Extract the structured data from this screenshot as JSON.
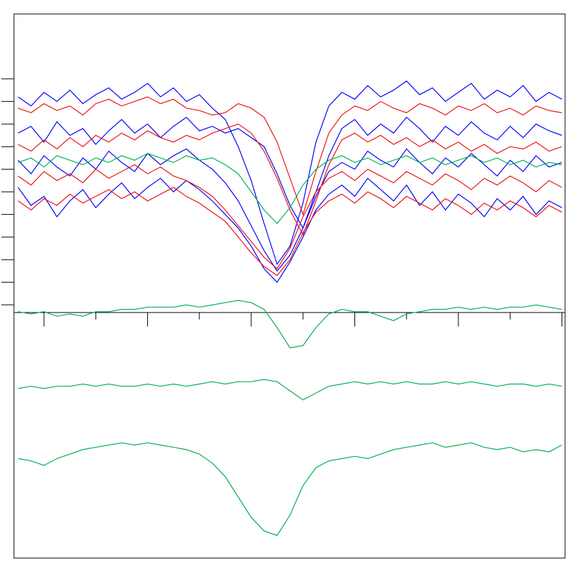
{
  "chart_data": {
    "type": "line",
    "x": [
      0.5,
      0.75,
      1.0,
      1.25,
      1.5,
      1.75,
      2.0,
      2.25,
      2.5,
      2.75,
      3.0,
      3.25,
      3.5,
      3.75,
      4.0,
      4.25,
      4.5,
      4.75,
      5.0,
      5.25,
      5.5,
      5.75,
      6.0,
      6.25,
      6.5,
      6.75,
      7.0,
      7.25,
      7.5,
      7.75,
      8.0,
      8.25,
      8.5,
      8.75,
      9.0,
      9.25,
      9.5,
      9.75,
      10.0,
      10.25,
      10.5,
      10.75,
      11.0
    ],
    "xlim": [
      0.42,
      11.06
    ],
    "ylim": [
      -11.2,
      12.87
    ],
    "xticks": [
      1,
      2,
      3,
      4,
      5,
      6,
      7,
      8,
      9,
      10,
      11
    ],
    "yticks": [
      0,
      1,
      2,
      3,
      4,
      5,
      6,
      7,
      8,
      9,
      10
    ],
    "series": [
      {
        "color": "#0000ff",
        "values": [
          9.2,
          8.8,
          9.4,
          9.0,
          9.5,
          8.9,
          9.3,
          9.6,
          9.1,
          9.4,
          9.8,
          9.2,
          9.6,
          9.0,
          9.3,
          8.7,
          8.2,
          7.0,
          5.5,
          3.6,
          1.8,
          2.6,
          4.5,
          7.2,
          8.8,
          9.4,
          9.1,
          9.7,
          9.2,
          9.5,
          9.9,
          9.3,
          9.6,
          9.0,
          9.4,
          9.8,
          9.1,
          9.5,
          9.2,
          9.7,
          9.0,
          9.4,
          9.1
        ]
      },
      {
        "color": "#0000ff",
        "values": [
          5.2,
          4.4,
          4.8,
          3.9,
          4.6,
          5.1,
          4.3,
          4.9,
          5.4,
          4.7,
          5.2,
          5.6,
          5.0,
          5.5,
          5.1,
          4.6,
          4.0,
          3.4,
          2.6,
          1.6,
          1.0,
          1.9,
          3.0,
          4.2,
          4.9,
          5.3,
          4.8,
          5.6,
          5.1,
          4.6,
          5.3,
          4.4,
          5.0,
          4.2,
          4.9,
          4.5,
          3.9,
          4.7,
          4.2,
          4.8,
          4.0,
          4.6,
          4.3
        ]
      },
      {
        "color": "#0000ff",
        "values": [
          7.6,
          7.9,
          7.2,
          8.1,
          7.5,
          7.8,
          7.1,
          7.7,
          8.2,
          7.6,
          8.0,
          7.4,
          7.9,
          8.3,
          7.7,
          7.9,
          7.6,
          7.8,
          7.4,
          7.0,
          5.8,
          4.4,
          3.4,
          5.0,
          6.6,
          7.8,
          8.2,
          7.5,
          8.0,
          7.6,
          8.3,
          7.8,
          7.2,
          7.9,
          7.5,
          8.1,
          7.6,
          7.3,
          7.9,
          7.4,
          8.0,
          7.7,
          7.5
        ]
      },
      {
        "color": "#0000ff",
        "values": [
          6.4,
          5.8,
          6.6,
          6.1,
          5.7,
          6.5,
          6.0,
          6.8,
          6.3,
          5.9,
          6.7,
          6.2,
          6.6,
          6.9,
          6.4,
          6.0,
          5.4,
          4.6,
          3.5,
          2.4,
          1.5,
          2.2,
          3.4,
          4.8,
          5.9,
          6.3,
          6.0,
          6.8,
          6.4,
          6.1,
          6.9,
          6.3,
          5.8,
          6.5,
          6.1,
          6.7,
          6.2,
          5.7,
          6.4,
          5.9,
          6.6,
          6.1,
          6.3
        ]
      },
      {
        "color": "#ee1111",
        "values": [
          8.7,
          8.5,
          8.9,
          8.6,
          8.8,
          8.4,
          8.9,
          9.1,
          8.8,
          9.0,
          9.2,
          8.9,
          9.1,
          8.7,
          8.6,
          8.4,
          8.5,
          8.9,
          8.7,
          8.3,
          7.2,
          5.6,
          4.0,
          5.9,
          7.6,
          8.4,
          8.8,
          8.6,
          9.0,
          8.7,
          8.5,
          8.9,
          8.7,
          8.4,
          8.8,
          8.6,
          8.9,
          8.5,
          8.7,
          8.4,
          8.8,
          8.6,
          8.5
        ]
      },
      {
        "color": "#ee1111",
        "values": [
          5.7,
          5.3,
          5.9,
          5.5,
          5.8,
          5.4,
          6.0,
          5.6,
          5.9,
          6.2,
          5.8,
          6.1,
          5.7,
          5.5,
          5.2,
          4.8,
          4.2,
          3.5,
          2.8,
          2.1,
          1.6,
          2.5,
          3.9,
          5.0,
          5.6,
          5.9,
          5.5,
          6.0,
          5.7,
          5.4,
          5.9,
          5.6,
          5.3,
          5.8,
          5.5,
          5.1,
          5.6,
          5.3,
          5.7,
          5.4,
          5.0,
          5.5,
          5.2
        ]
      },
      {
        "color": "#ee1111",
        "values": [
          7.1,
          6.8,
          7.3,
          6.9,
          7.4,
          7.0,
          7.5,
          7.2,
          7.6,
          7.3,
          7.7,
          7.4,
          7.2,
          7.5,
          7.3,
          7.6,
          7.8,
          8.0,
          7.6,
          6.8,
          5.6,
          4.2,
          3.1,
          4.6,
          6.2,
          7.3,
          7.6,
          7.2,
          7.5,
          7.1,
          7.4,
          7.0,
          7.3,
          6.9,
          7.2,
          6.8,
          7.1,
          6.7,
          7.0,
          6.9,
          7.2,
          6.8,
          7.0
        ]
      },
      {
        "color": "#ee1111",
        "values": [
          4.6,
          4.2,
          4.7,
          4.4,
          4.9,
          4.5,
          4.8,
          5.1,
          4.7,
          5.0,
          4.6,
          4.9,
          5.2,
          4.8,
          4.5,
          4.1,
          3.7,
          3.0,
          2.3,
          1.7,
          1.3,
          2.0,
          3.2,
          4.1,
          4.6,
          4.9,
          4.5,
          5.0,
          4.7,
          4.3,
          4.8,
          4.5,
          4.2,
          4.7,
          4.4,
          4.0,
          4.5,
          4.2,
          4.6,
          4.3,
          3.9,
          4.4,
          4.1
        ]
      },
      {
        "color": "#00b050",
        "values": [
          6.3,
          6.5,
          6.1,
          6.6,
          6.4,
          6.2,
          6.5,
          6.3,
          6.6,
          6.4,
          6.7,
          6.5,
          6.3,
          6.6,
          6.4,
          6.5,
          6.2,
          5.8,
          5.0,
          4.2,
          3.6,
          4.3,
          5.3,
          6.0,
          6.4,
          6.6,
          6.3,
          6.5,
          6.2,
          6.4,
          6.6,
          6.3,
          6.5,
          6.2,
          6.4,
          6.6,
          6.3,
          6.5,
          6.2,
          6.4,
          6.1,
          6.3,
          6.2
        ]
      },
      {
        "color": "#00b050",
        "values": [
          -0.3,
          -0.4,
          -0.3,
          -0.5,
          -0.4,
          -0.5,
          -0.3,
          -0.3,
          -0.2,
          -0.2,
          -0.1,
          -0.1,
          -0.1,
          0.0,
          -0.1,
          0.0,
          0.1,
          0.2,
          0.1,
          -0.2,
          -1.0,
          -1.9,
          -1.8,
          -1.0,
          -0.4,
          -0.2,
          -0.3,
          -0.3,
          -0.5,
          -0.7,
          -0.4,
          -0.3,
          -0.2,
          -0.2,
          -0.1,
          -0.2,
          -0.1,
          -0.2,
          -0.1,
          -0.1,
          0.0,
          -0.1,
          -0.2
        ]
      },
      {
        "color": "#00b050",
        "values": [
          -3.7,
          -3.6,
          -3.7,
          -3.6,
          -3.6,
          -3.5,
          -3.6,
          -3.5,
          -3.6,
          -3.6,
          -3.5,
          -3.6,
          -3.5,
          -3.6,
          -3.5,
          -3.4,
          -3.5,
          -3.4,
          -3.4,
          -3.3,
          -3.4,
          -3.8,
          -4.2,
          -3.9,
          -3.6,
          -3.5,
          -3.4,
          -3.5,
          -3.4,
          -3.5,
          -3.4,
          -3.5,
          -3.5,
          -3.4,
          -3.5,
          -3.4,
          -3.5,
          -3.6,
          -3.5,
          -3.5,
          -3.6,
          -3.5,
          -3.6
        ]
      },
      {
        "color": "#00b050",
        "values": [
          -6.8,
          -6.9,
          -7.1,
          -6.8,
          -6.6,
          -6.4,
          -6.3,
          -6.2,
          -6.1,
          -6.2,
          -6.1,
          -6.2,
          -6.3,
          -6.4,
          -6.6,
          -7.0,
          -7.6,
          -8.5,
          -9.4,
          -10.0,
          -10.2,
          -9.3,
          -8.0,
          -7.2,
          -6.9,
          -6.8,
          -6.7,
          -6.8,
          -6.6,
          -6.4,
          -6.3,
          -6.2,
          -6.1,
          -6.3,
          -6.2,
          -6.1,
          -6.3,
          -6.4,
          -6.3,
          -6.5,
          -6.4,
          -6.5,
          -6.2
        ]
      }
    ]
  }
}
